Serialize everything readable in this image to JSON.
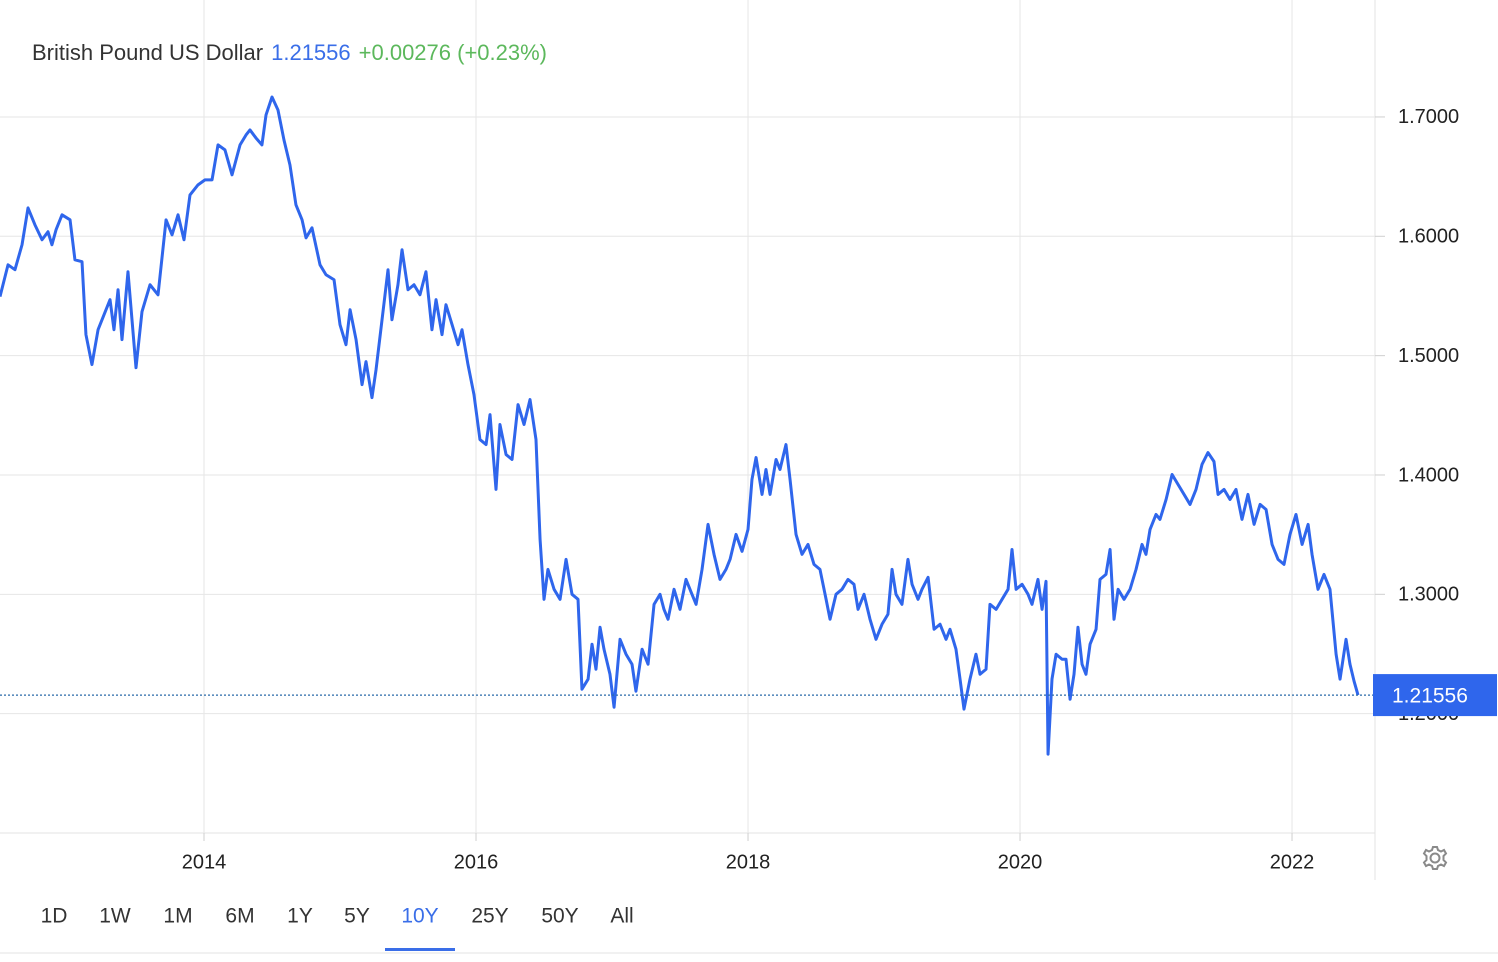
{
  "chart_data": {
    "type": "line",
    "title": "British Pound US Dollar",
    "last_value": 1.21556,
    "last_value_label": "1.21556",
    "change": "+0.00276 (+0.23%)",
    "color": "#2f66ec",
    "xlim": [
      2012.5,
      2022.61
    ],
    "xticks": [
      2014,
      2016,
      2018,
      2020,
      2022
    ],
    "ylim": [
      1.1,
      1.798
    ],
    "yticks": [
      {
        "value": 1.2,
        "label": "1.2000"
      },
      {
        "value": 1.3,
        "label": "1.3000"
      },
      {
        "value": 1.4,
        "label": "1.4000"
      },
      {
        "value": 1.5,
        "label": "1.5000"
      },
      {
        "value": 1.6,
        "label": "1.6000"
      },
      {
        "value": 1.7,
        "label": "1.7000"
      }
    ],
    "grid": true,
    "ranges": [
      "1D",
      "1W",
      "1M",
      "6M",
      "1Y",
      "5Y",
      "10Y",
      "25Y",
      "50Y",
      "All"
    ],
    "selected_range": "10Y",
    "x": [
      2012.5,
      2012.559,
      2012.61,
      2012.662,
      2012.706,
      2012.757,
      2012.809,
      2012.853,
      2012.882,
      2012.912,
      2012.956,
      2013.015,
      2013.051,
      2013.103,
      2013.132,
      2013.176,
      2013.221,
      2013.265,
      2013.309,
      2013.338,
      2013.368,
      2013.397,
      2013.441,
      2013.5,
      2013.544,
      2013.603,
      2013.662,
      2013.721,
      2013.765,
      2013.809,
      2013.853,
      2013.897,
      2013.956,
      2014.007,
      2014.059,
      2014.103,
      2014.154,
      2014.206,
      2014.265,
      2014.309,
      2014.338,
      2014.382,
      2014.426,
      2014.456,
      2014.5,
      2014.544,
      2014.588,
      2014.632,
      2014.676,
      2014.721,
      2014.75,
      2014.794,
      2014.853,
      2014.897,
      2014.956,
      2015.0,
      2015.044,
      2015.074,
      2015.118,
      2015.162,
      2015.191,
      2015.235,
      2015.265,
      2015.309,
      2015.353,
      2015.382,
      2015.426,
      2015.456,
      2015.5,
      2015.544,
      2015.588,
      2015.632,
      2015.676,
      2015.706,
      2015.75,
      2015.779,
      2015.824,
      2015.868,
      2015.897,
      2015.941,
      2015.985,
      2016.029,
      2016.074,
      2016.103,
      2016.147,
      2016.176,
      2016.221,
      2016.265,
      2016.309,
      2016.353,
      2016.397,
      2016.441,
      2016.471,
      2016.5,
      2016.529,
      2016.574,
      2016.618,
      2016.662,
      2016.706,
      2016.75,
      2016.779,
      2016.824,
      2016.853,
      2016.882,
      2016.912,
      2016.941,
      2016.985,
      2017.015,
      2017.059,
      2017.103,
      2017.147,
      2017.176,
      2017.221,
      2017.265,
      2017.309,
      2017.353,
      2017.382,
      2017.412,
      2017.456,
      2017.5,
      2017.544,
      2017.588,
      2017.618,
      2017.662,
      2017.706,
      2017.75,
      2017.794,
      2017.838,
      2017.868,
      2017.912,
      2017.956,
      2018.0,
      2018.029,
      2018.059,
      2018.103,
      2018.132,
      2018.162,
      2018.206,
      2018.235,
      2018.279,
      2018.309,
      2018.353,
      2018.397,
      2018.441,
      2018.485,
      2018.529,
      2018.574,
      2018.603,
      2018.647,
      2018.691,
      2018.735,
      2018.779,
      2018.809,
      2018.853,
      2018.897,
      2018.941,
      2018.985,
      2019.029,
      2019.059,
      2019.088,
      2019.132,
      2019.176,
      2019.206,
      2019.25,
      2019.279,
      2019.324,
      2019.368,
      2019.412,
      2019.456,
      2019.485,
      2019.529,
      2019.559,
      2019.588,
      2019.632,
      2019.676,
      2019.706,
      2019.75,
      2019.779,
      2019.824,
      2019.868,
      2019.912,
      2019.941,
      2019.971,
      2020.015,
      2020.059,
      2020.088,
      2020.132,
      2020.162,
      2020.191,
      2020.206,
      2020.235,
      2020.265,
      2020.309,
      2020.338,
      2020.368,
      2020.397,
      2020.426,
      2020.456,
      2020.485,
      2020.515,
      2020.559,
      2020.588,
      2020.632,
      2020.662,
      2020.691,
      2020.721,
      2020.765,
      2020.809,
      2020.853,
      2020.897,
      2020.926,
      2020.956,
      2021.0,
      2021.029,
      2021.074,
      2021.118,
      2021.162,
      2021.206,
      2021.25,
      2021.294,
      2021.338,
      2021.382,
      2021.426,
      2021.456,
      2021.5,
      2021.544,
      2021.588,
      2021.632,
      2021.676,
      2021.721,
      2021.765,
      2021.809,
      2021.853,
      2021.897,
      2021.941,
      2021.985,
      2022.029,
      2022.074,
      2022.118,
      2022.147,
      2022.191,
      2022.235,
      2022.279,
      2022.324,
      2022.353,
      2022.397,
      2022.426,
      2022.456,
      2022.485
    ],
    "values": [
      1.5494,
      1.5761,
      1.572,
      1.5929,
      1.6238,
      1.6096,
      1.5971,
      1.6038,
      1.5929,
      1.6054,
      1.618,
      1.6138,
      1.5803,
      1.5787,
      1.5176,
      1.4925,
      1.5217,
      1.5343,
      1.5469,
      1.5217,
      1.5552,
      1.5134,
      1.5703,
      1.4899,
      1.5368,
      1.5594,
      1.551,
      1.6138,
      1.6012,
      1.618,
      1.5971,
      1.6347,
      1.6431,
      1.6473,
      1.6473,
      1.6766,
      1.6724,
      1.6515,
      1.6766,
      1.6849,
      1.6891,
      1.6824,
      1.6766,
      1.7017,
      1.7167,
      1.7058,
      1.6807,
      1.6598,
      1.6264,
      1.6138,
      1.5987,
      1.6071,
      1.5761,
      1.5678,
      1.5636,
      1.5259,
      1.5092,
      1.5385,
      1.5134,
      1.4757,
      1.495,
      1.4648,
      1.4883,
      1.5301,
      1.572,
      1.5301,
      1.5594,
      1.5887,
      1.5552,
      1.5594,
      1.551,
      1.5703,
      1.5217,
      1.5469,
      1.5176,
      1.5427,
      1.5259,
      1.5092,
      1.5217,
      1.4925,
      1.4674,
      1.4297,
      1.4255,
      1.4506,
      1.3879,
      1.4423,
      1.4171,
      1.413,
      1.459,
      1.4423,
      1.4632,
      1.4297,
      1.346,
      1.2958,
      1.3209,
      1.3042,
      1.2958,
      1.3293,
      1.3,
      1.2958,
      1.2205,
      1.2289,
      1.2582,
      1.2372,
      1.2724,
      1.254,
      1.233,
      1.2054,
      1.2623,
      1.2498,
      1.2414,
      1.2188,
      1.254,
      1.2414,
      1.2916,
      1.3,
      1.2874,
      1.2791,
      1.3042,
      1.2874,
      1.3125,
      1.3,
      1.2916,
      1.3209,
      1.3586,
      1.3335,
      1.3125,
      1.3209,
      1.3293,
      1.3502,
      1.336,
      1.3544,
      1.3962,
      1.4146,
      1.3837,
      1.4046,
      1.3837,
      1.413,
      1.4046,
      1.4255,
      1.3962,
      1.3502,
      1.3335,
      1.3418,
      1.3251,
      1.3209,
      1.2958,
      1.2791,
      1.3,
      1.3042,
      1.3125,
      1.3084,
      1.2874,
      1.3,
      1.2791,
      1.2623,
      1.2749,
      1.2833,
      1.3209,
      1.3,
      1.2916,
      1.3293,
      1.3084,
      1.2958,
      1.3042,
      1.3142,
      1.2707,
      1.2749,
      1.2623,
      1.2707,
      1.254,
      1.2289,
      1.2038,
      1.2289,
      1.2498,
      1.233,
      1.2372,
      1.2916,
      1.2874,
      1.2958,
      1.3042,
      1.3376,
      1.3042,
      1.3084,
      1.3,
      1.2916,
      1.3125,
      1.2874,
      1.3109,
      1.1661,
      1.2289,
      1.2498,
      1.2456,
      1.2456,
      1.2121,
      1.233,
      1.2724,
      1.2414,
      1.233,
      1.2582,
      1.2707,
      1.3125,
      1.3167,
      1.3376,
      1.2791,
      1.3042,
      1.2958,
      1.3042,
      1.3209,
      1.3418,
      1.3335,
      1.3544,
      1.3669,
      1.3628,
      1.3795,
      1.4004,
      1.392,
      1.3837,
      1.3753,
      1.3879,
      1.4088,
      1.4188,
      1.4113,
      1.3837,
      1.3879,
      1.3795,
      1.3879,
      1.3628,
      1.3837,
      1.3586,
      1.3753,
      1.3711,
      1.3418,
      1.3293,
      1.3251,
      1.3502,
      1.3669,
      1.3418,
      1.3586,
      1.3335,
      1.3042,
      1.3167,
      1.3042,
      1.2498,
      1.2289,
      1.2623,
      1.2414,
      1.2272,
      1.21556
    ]
  }
}
